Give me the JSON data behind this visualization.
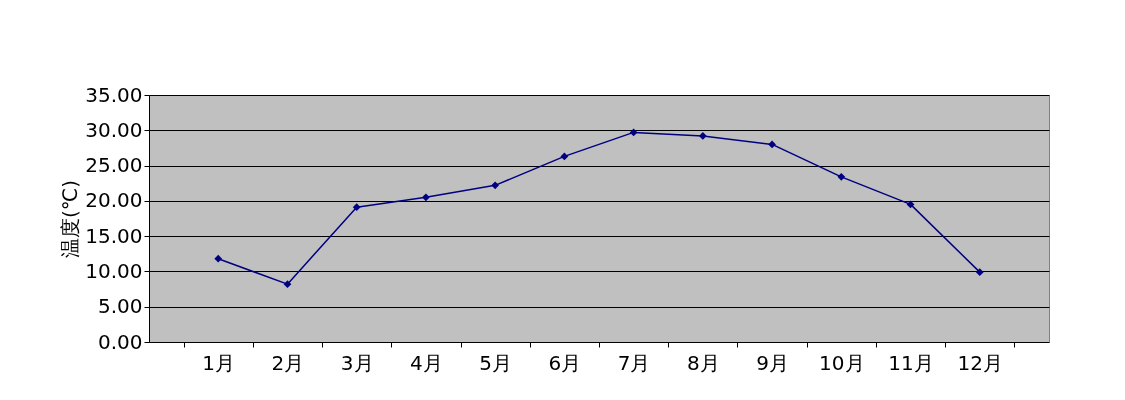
{
  "chart_data": {
    "type": "line",
    "ylabel": "温度(℃)",
    "categories": [
      "1月",
      "2月",
      "3月",
      "4月",
      "5月",
      "6月",
      "7月",
      "8月",
      "9月",
      "10月",
      "11月",
      "12月"
    ],
    "series": [
      {
        "color": "#000080",
        "values": [
          11.8,
          8.2,
          19.1,
          20.5,
          22.2,
          26.3,
          29.7,
          29.2,
          28.0,
          23.4,
          19.5,
          9.9
        ]
      }
    ],
    "ylim": [
      0,
      35
    ],
    "yticks": [
      {
        "value": 0,
        "label": "0.00"
      },
      {
        "value": 5,
        "label": "5.00"
      },
      {
        "value": 10,
        "label": "10.00"
      },
      {
        "value": 15,
        "label": "15.00"
      },
      {
        "value": 20,
        "label": "20.00"
      },
      {
        "value": 25,
        "label": "25.00"
      },
      {
        "value": 30,
        "label": "30.00"
      },
      {
        "value": 35,
        "label": "35.00"
      }
    ],
    "grid": "y",
    "marker": "diamond",
    "line_style": "solid",
    "legend": false
  }
}
